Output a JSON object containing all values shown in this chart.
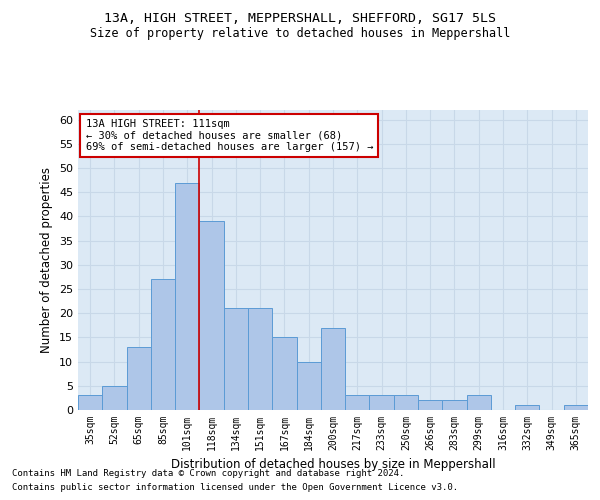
{
  "title": "13A, HIGH STREET, MEPPERSHALL, SHEFFORD, SG17 5LS",
  "subtitle": "Size of property relative to detached houses in Meppershall",
  "xlabel": "Distribution of detached houses by size in Meppershall",
  "ylabel": "Number of detached properties",
  "categories": [
    "35sqm",
    "52sqm",
    "65sqm",
    "85sqm",
    "101sqm",
    "118sqm",
    "134sqm",
    "151sqm",
    "167sqm",
    "184sqm",
    "200sqm",
    "217sqm",
    "233sqm",
    "250sqm",
    "266sqm",
    "283sqm",
    "299sqm",
    "316sqm",
    "332sqm",
    "349sqm",
    "365sqm"
  ],
  "values": [
    3,
    5,
    13,
    27,
    47,
    39,
    21,
    21,
    15,
    10,
    17,
    3,
    3,
    3,
    2,
    2,
    3,
    0,
    1,
    0,
    1
  ],
  "bar_color": "#aec6e8",
  "bar_edgecolor": "#5b9bd5",
  "grid_color": "#c8d8e8",
  "background_color": "#dce9f5",
  "ylim": [
    0,
    62
  ],
  "yticks": [
    0,
    5,
    10,
    15,
    20,
    25,
    30,
    35,
    40,
    45,
    50,
    55,
    60
  ],
  "annotation_text": "13A HIGH STREET: 111sqm\n← 30% of detached houses are smaller (68)\n69% of semi-detached houses are larger (157) →",
  "vline_color": "#cc0000",
  "footnote1": "Contains HM Land Registry data © Crown copyright and database right 2024.",
  "footnote2": "Contains public sector information licensed under the Open Government Licence v3.0."
}
